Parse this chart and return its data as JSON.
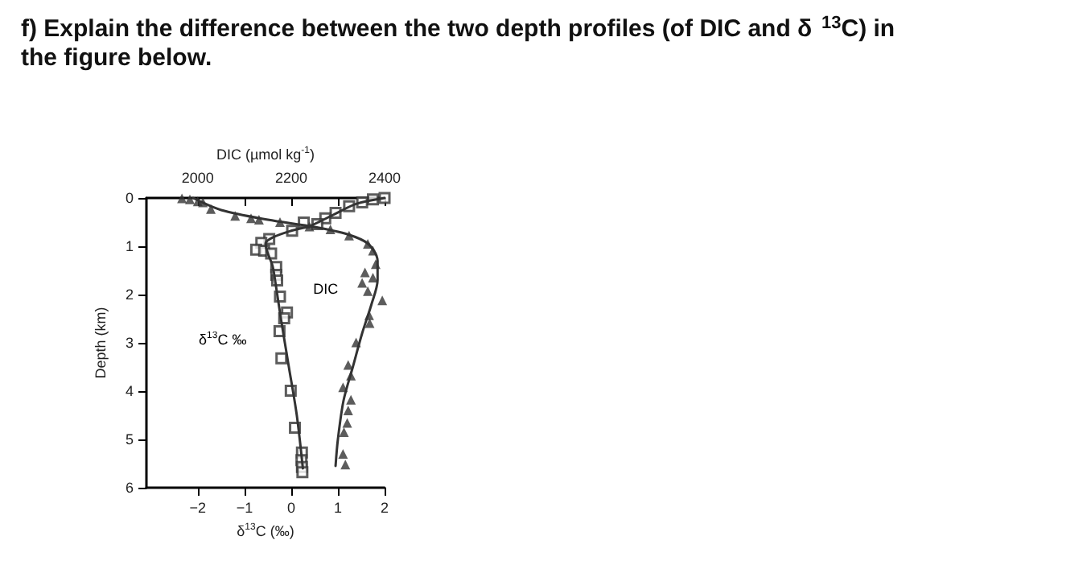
{
  "chart_data": {
    "type": "scatter",
    "title": "f) Explain the difference between the two depth profiles (of DIC and δ$^{13}$C) in the figure below.",
    "xlabel": "δ$^{13}$C (‰)",
    "x2label": "DIC (µmol kg$^{-1}$)",
    "ylabel": "Depth (km)",
    "xlim": [
      -3.1,
      2
    ],
    "xticks": [
      -2,
      -1,
      0,
      1,
      2
    ],
    "x2lim": [
      1890,
      2400
    ],
    "x2ticks": [
      2000,
      {
        "value": 2100,
        "label": null
      },
      2200,
      {
        "value": 2300,
        "label": null
      },
      2400
    ],
    "ylim": [
      6,
      0
    ],
    "yticks": [
      0,
      1,
      2,
      3,
      4,
      5,
      6
    ],
    "grid": false,
    "legend": false,
    "series": [
      {
        "name": "δ$^{13}$C ‰",
        "marker": "square",
        "color": "#333333",
        "x": [
          2.0,
          1.75,
          1.52,
          1.24,
          0.95,
          0.73,
          0.56,
          0.27,
          0.02,
          -0.47,
          -0.64,
          -0.75,
          -0.58,
          -0.43,
          -0.32,
          -0.32,
          -0.3,
          -0.24,
          -0.09,
          -0.15,
          -0.25,
          -0.21,
          -0.01,
          0.08,
          0.23,
          0.22,
          0.23,
          0.24
        ],
        "values": [
          0,
          0.03,
          0.09,
          0.17,
          0.31,
          0.42,
          0.54,
          0.51,
          0.68,
          0.85,
          0.93,
          1.07,
          1.09,
          1.15,
          1.43,
          1.59,
          1.71,
          2.04,
          2.37,
          2.49,
          2.76,
          3.32,
          3.99,
          4.76,
          5.27,
          5.43,
          5.57,
          5.68
        ]
      },
      {
        "type": "line",
        "marker": "none",
        "color": "#333333",
        "x": [
          2.0,
          1.4,
          0.9,
          0.4,
          0.0,
          -0.4,
          -0.55,
          -0.5,
          -0.4,
          -0.33,
          -0.22,
          -0.05,
          0.12,
          0.25
        ],
        "values": [
          0,
          0.12,
          0.35,
          0.58,
          0.68,
          0.82,
          0.95,
          1.15,
          1.4,
          1.8,
          2.5,
          3.5,
          4.5,
          5.6
        ]
      },
      {
        "name": "DIC",
        "marker": "triangle",
        "color": "#333333",
        "axis": "x2",
        "x": [
          1966,
          1983,
          2000,
          2011,
          2028,
          2080,
          2114,
          2131,
          2176,
          2239,
          2284,
          2324,
          2364,
          2375,
          2381,
          2358,
          2375,
          2352,
          2364,
          2395,
          2367,
          2368,
          2339,
          2322,
          2328,
          2311,
          2328,
          2322,
          2320,
          2313,
          2311,
          2316
        ],
        "values": [
          0.01,
          0.03,
          0.07,
          0.09,
          0.23,
          0.37,
          0.42,
          0.45,
          0.5,
          0.59,
          0.65,
          0.78,
          0.95,
          1.09,
          1.37,
          1.54,
          1.65,
          1.76,
          1.93,
          2.12,
          2.43,
          2.59,
          2.99,
          3.46,
          3.68,
          3.92,
          4.18,
          4.4,
          4.66,
          4.85,
          5.3,
          5.52
        ]
      },
      {
        "type": "line",
        "marker": "none",
        "color": "#333333",
        "axis": "x2",
        "x": [
          1990,
          2050,
          2150,
          2250,
          2320,
          2365,
          2385,
          2385,
          2372,
          2352,
          2332,
          2312,
          2300,
          2295
        ],
        "values": [
          0,
          0.25,
          0.45,
          0.6,
          0.75,
          0.95,
          1.3,
          1.7,
          2.2,
          2.8,
          3.5,
          4.2,
          5.0,
          5.55
        ]
      }
    ]
  }
}
